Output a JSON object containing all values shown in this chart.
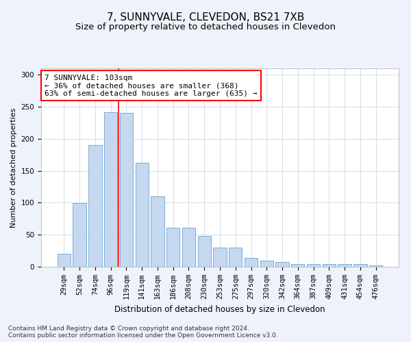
{
  "title": "7, SUNNYVALE, CLEVEDON, BS21 7XB",
  "subtitle": "Size of property relative to detached houses in Clevedon",
  "xlabel": "Distribution of detached houses by size in Clevedon",
  "ylabel": "Number of detached properties",
  "categories": [
    "29sqm",
    "52sqm",
    "74sqm",
    "96sqm",
    "119sqm",
    "141sqm",
    "163sqm",
    "186sqm",
    "208sqm",
    "230sqm",
    "253sqm",
    "275sqm",
    "297sqm",
    "320sqm",
    "342sqm",
    "364sqm",
    "387sqm",
    "409sqm",
    "431sqm",
    "454sqm",
    "476sqm"
  ],
  "values": [
    20,
    99,
    190,
    242,
    241,
    162,
    110,
    61,
    61,
    48,
    30,
    30,
    14,
    10,
    7,
    4,
    4,
    4,
    4,
    4,
    2
  ],
  "bar_color": "#c5d8f0",
  "bar_edge_color": "#7aadd4",
  "vline_x": 3.5,
  "vline_color": "red",
  "annotation_text": "7 SUNNYVALE: 103sqm\n← 36% of detached houses are smaller (368)\n63% of semi-detached houses are larger (635) →",
  "annotation_box_color": "white",
  "annotation_box_edge_color": "red",
  "ylim": [
    0,
    310
  ],
  "yticks": [
    0,
    50,
    100,
    150,
    200,
    250,
    300
  ],
  "footer": "Contains HM Land Registry data © Crown copyright and database right 2024.\nContains public sector information licensed under the Open Government Licence v3.0.",
  "bg_color": "#eef2fa",
  "plot_bg_color": "white",
  "title_fontsize": 11,
  "subtitle_fontsize": 9.5,
  "xlabel_fontsize": 8.5,
  "ylabel_fontsize": 8,
  "tick_fontsize": 7.5,
  "annotation_fontsize": 8,
  "footer_fontsize": 6.5
}
